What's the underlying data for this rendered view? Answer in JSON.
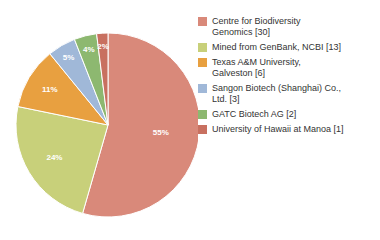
{
  "chart_data": {
    "type": "pie",
    "categories": [
      "Centre for Biodiversity\nGenomics [30]",
      "Mined from GenBank, NCBI [13]",
      "Texas A&M University,\nGalveston [6]",
      "Sangon Biotech (Shanghai) Co.,\nLtd. [3]",
      "GATC Biotech AG [2]",
      "University of Hawaii at Manoa [1]"
    ],
    "values": [
      55,
      24,
      11,
      5,
      4,
      2
    ],
    "value_labels": [
      "55%",
      "24%",
      "11%",
      "5%",
      "4%",
      "2%"
    ],
    "colors": [
      "#d9897a",
      "#c8d07a",
      "#e8a040",
      "#a0b8d8",
      "#8db870",
      "#c87060"
    ],
    "data_labels": true,
    "legend": "right"
  }
}
